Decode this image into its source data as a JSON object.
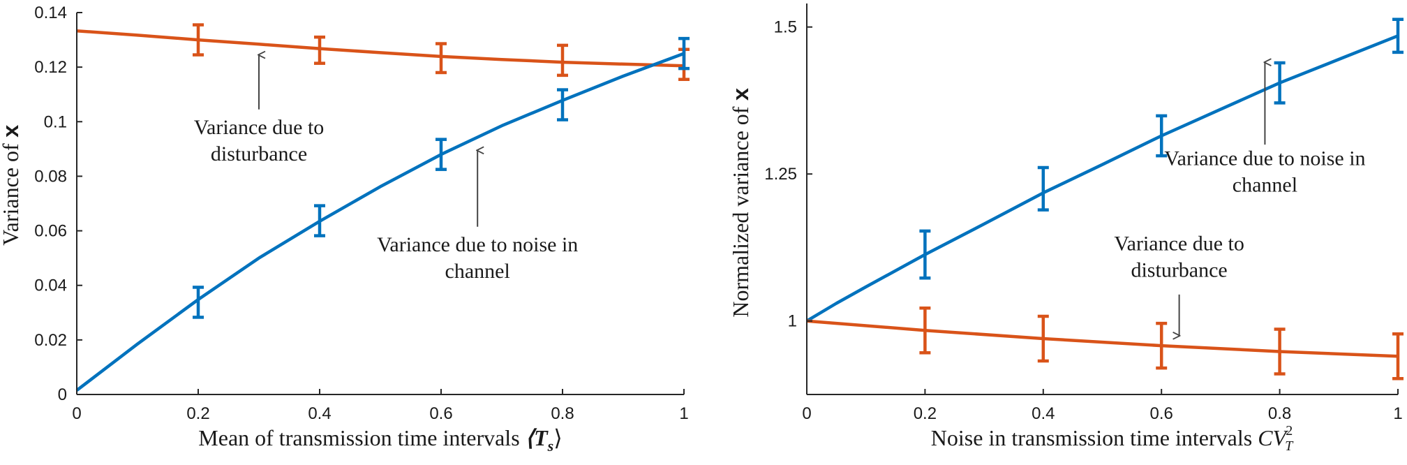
{
  "chart_data": [
    {
      "type": "line",
      "xlabel": "Mean of transmission time intervals",
      "xlabel_math": "⟨T",
      "xlabel_sub": "s",
      "xlabel_close": "⟩",
      "ylabel": "Variance of",
      "ylabel_math": "x",
      "xlim": [
        0,
        1
      ],
      "ylim": [
        0,
        0.14
      ],
      "xticks": [
        0,
        0.2,
        0.4,
        0.6,
        0.8,
        1
      ],
      "xtick_labels": [
        "0",
        "0.2",
        "0.4",
        "0.6",
        "0.8",
        "1"
      ],
      "yticks": [
        0,
        0.02,
        0.04,
        0.06,
        0.08,
        0.1,
        0.12,
        0.14
      ],
      "ytick_labels": [
        "0",
        "0.02",
        "0.04",
        "0.06",
        "0.08",
        "0.1",
        "0.12",
        "0.14"
      ],
      "grid": false,
      "series": [
        {
          "color": "#d95319",
          "curve_x": [
            0,
            0.1,
            0.2,
            0.3,
            0.4,
            0.5,
            0.6,
            0.7,
            0.8,
            0.9,
            1.0
          ],
          "curve_y": [
            0.1333,
            0.1317,
            0.13,
            0.1284,
            0.1268,
            0.1253,
            0.1239,
            0.1228,
            0.1218,
            0.1211,
            0.1205
          ],
          "points": [
            {
              "x": 0.2,
              "y": 0.13,
              "err": 0.0055
            },
            {
              "x": 0.4,
              "y": 0.1262,
              "err": 0.0048
            },
            {
              "x": 0.6,
              "y": 0.1233,
              "err": 0.0053
            },
            {
              "x": 0.8,
              "y": 0.1225,
              "err": 0.0055
            },
            {
              "x": 1.0,
              "y": 0.121,
              "err": 0.0055
            }
          ]
        },
        {
          "color": "#0072bd",
          "curve_x": [
            0,
            0.1,
            0.2,
            0.3,
            0.4,
            0.5,
            0.6,
            0.7,
            0.8,
            0.9,
            1.0
          ],
          "curve_y": [
            0.0015,
            0.0185,
            0.0348,
            0.05,
            0.0635,
            0.0762,
            0.088,
            0.0985,
            0.1078,
            0.1167,
            0.125
          ],
          "points": [
            {
              "x": 0.2,
              "y": 0.0338,
              "err": 0.0055
            },
            {
              "x": 0.4,
              "y": 0.0637,
              "err": 0.0055
            },
            {
              "x": 0.6,
              "y": 0.088,
              "err": 0.0055
            },
            {
              "x": 0.8,
              "y": 0.1062,
              "err": 0.0055
            },
            {
              "x": 1.0,
              "y": 0.125,
              "err": 0.0055
            }
          ]
        }
      ],
      "annotations": [
        {
          "lines": [
            "Variance due to",
            "disturbance"
          ],
          "text_x": 0.3,
          "text_y": 0.0955,
          "arrow_from": [
            0.3,
            0.1045
          ],
          "arrow_to": [
            0.3,
            0.1245
          ]
        },
        {
          "lines": [
            "Variance due to noise  in",
            "channel"
          ],
          "text_x": 0.66,
          "text_y": 0.0525,
          "arrow_from": [
            0.66,
            0.0615
          ],
          "arrow_to": [
            0.66,
            0.0895
          ]
        }
      ]
    },
    {
      "type": "line",
      "xlabel": "Noise in transmission time intervals",
      "xlabel_math": "CV",
      "xlabel_sub": "T",
      "xlabel_sup": "2",
      "ylabel": "Normalized variance of",
      "ylabel_math": "x",
      "xlim": [
        0,
        1
      ],
      "ylim": [
        0.875,
        1.54
      ],
      "xticks": [
        0,
        0.2,
        0.4,
        0.6,
        0.8,
        1
      ],
      "xtick_labels": [
        "0",
        "0.2",
        "0.4",
        "0.6",
        "0.8",
        "1"
      ],
      "yticks": [
        1,
        1.25,
        1.5
      ],
      "ytick_labels": [
        "1",
        "1.25",
        "1.5"
      ],
      "grid": false,
      "series": [
        {
          "color": "#0072bd",
          "curve_x": [
            0,
            0.05,
            0.1,
            0.2,
            0.3,
            0.4,
            0.5,
            0.6,
            0.7,
            0.8,
            0.9,
            1.0
          ],
          "curve_y": [
            1.0,
            1.03,
            1.058,
            1.113,
            1.165,
            1.218,
            1.266,
            1.315,
            1.36,
            1.405,
            1.445,
            1.485
          ],
          "points": [
            {
              "x": 0.2,
              "y": 1.113,
              "err": 0.04
            },
            {
              "x": 0.4,
              "y": 1.225,
              "err": 0.036
            },
            {
              "x": 0.6,
              "y": 1.315,
              "err": 0.034
            },
            {
              "x": 0.8,
              "y": 1.405,
              "err": 0.034
            },
            {
              "x": 1.0,
              "y": 1.485,
              "err": 0.028
            }
          ]
        },
        {
          "color": "#d95319",
          "curve_x": [
            0,
            0.2,
            0.4,
            0.6,
            0.8,
            1.0
          ],
          "curve_y": [
            1.0,
            0.984,
            0.97,
            0.958,
            0.948,
            0.94
          ],
          "points": [
            {
              "x": 0.2,
              "y": 0.984,
              "err": 0.038
            },
            {
              "x": 0.4,
              "y": 0.97,
              "err": 0.038
            },
            {
              "x": 0.6,
              "y": 0.958,
              "err": 0.038
            },
            {
              "x": 0.8,
              "y": 0.948,
              "err": 0.038
            },
            {
              "x": 1.0,
              "y": 0.94,
              "err": 0.038
            }
          ]
        }
      ],
      "annotations": [
        {
          "lines": [
            "Variance due to noise in",
            "channel"
          ],
          "text_x": 0.775,
          "text_y": 1.265,
          "arrow_from": [
            0.775,
            1.3
          ],
          "arrow_to": [
            0.775,
            1.44
          ]
        },
        {
          "lines": [
            "Variance due to",
            "disturbance"
          ],
          "text_x": 0.63,
          "text_y": 1.12,
          "arrow_from": [
            0.63,
            1.045
          ],
          "arrow_to": [
            0.63,
            0.975
          ]
        }
      ]
    }
  ]
}
